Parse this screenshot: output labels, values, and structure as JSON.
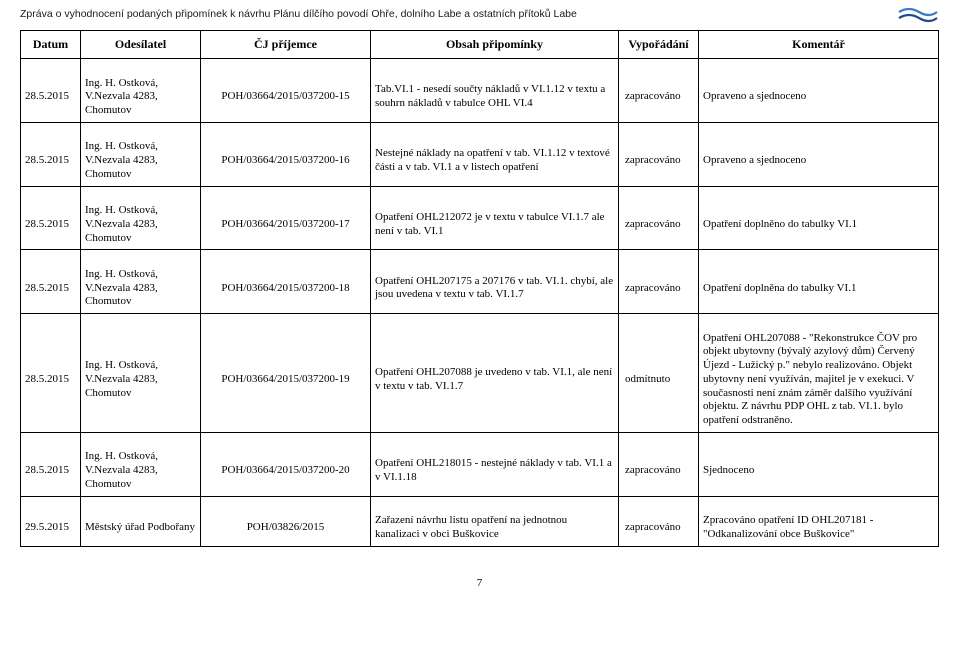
{
  "report_title": "Zpráva o vyhodnocení podaných připomínek k návrhu Plánu dílčího povodí Ohře, dolního Labe a ostatních přítoků Labe",
  "headers": {
    "date": "Datum",
    "sender": "Odesílatel",
    "ref": "ČJ příjemce",
    "obs": "Obsah připomínky",
    "vy": "Vypořádání",
    "kom": "Komentář"
  },
  "logo_colors": {
    "top": "#3b7bbf",
    "bottom": "#1f4e8c"
  },
  "rows": [
    {
      "date": "28.5.2015",
      "sender": "Ing. H. Ostková, V.Nezvala 4283, Chomutov",
      "ref": "POH/03664/2015/037200-15",
      "obs": "Tab.VI.1 - nesedí součty nákladů v VI.1.12 v textu a souhrn nákladů v tabulce OHL VI.4",
      "vy": "zapracováno",
      "kom": "Opraveno a sjednoceno"
    },
    {
      "date": "28.5.2015",
      "sender": "Ing. H. Ostková, V.Nezvala 4283, Chomutov",
      "ref": "POH/03664/2015/037200-16",
      "obs": "Nestejné náklady na opatření v tab. VI.1.12 v textové části a v tab. VI.1 a v listech opatření",
      "vy": "zapracováno",
      "kom": "Opraveno a sjednoceno"
    },
    {
      "date": "28.5.2015",
      "sender": "Ing. H. Ostková, V.Nezvala 4283, Chomutov",
      "ref": "POH/03664/2015/037200-17",
      "obs": "Opatření OHL212072 je v textu v tabulce VI.1.7 ale není v tab. VI.1",
      "vy": "zapracováno",
      "kom": "Opatření doplněno do tabulky VI.1"
    },
    {
      "date": "28.5.2015",
      "sender": "Ing. H. Ostková, V.Nezvala 4283, Chomutov",
      "ref": "POH/03664/2015/037200-18",
      "obs": "Opatření OHL207175 a 207176 v tab. VI.1. chybí, ale jsou uvedena v textu v tab. VI.1.7",
      "vy": "zapracováno",
      "kom": "Opatření doplněna do tabulky VI.1"
    },
    {
      "date": "28.5.2015",
      "sender": "Ing. H. Ostková, V.Nezvala 4283, Chomutov",
      "ref": "POH/03664/2015/037200-19",
      "obs": "Opatření OHL207088 je uvedeno v tab. VI.1, ale není v textu v tab. VI.1.7",
      "vy": "odmítnuto",
      "kom": "Opatření OHL207088 - \"Rekonstrukce ČOV pro objekt ubytovny (bývalý azylový dům) Červený Újezd - Lužický p.\" nebylo realizováno. Objekt ubytovny není využíván, majitel je v exekuci. V současnosti není znám záměr dalšího využívání objektu. Z návrhu PDP OHL z tab. VI.1. bylo opatření odstraněno."
    },
    {
      "date": "28.5.2015",
      "sender": "Ing. H. Ostková, V.Nezvala 4283, Chomutov",
      "ref": "POH/03664/2015/037200-20",
      "obs": "Opatření OHL218015 - nestejné náklady v tab. VI.1 a v VI.1.18",
      "vy": "zapracováno",
      "kom": "Sjednoceno"
    },
    {
      "date": "29.5.2015",
      "sender": "Městský úřad Podbořany",
      "ref": "POH/03826/2015",
      "obs": "Zařazení návrhu listu opatření na jednotnou kanalizaci v obci Buškovice",
      "vy": "zapracováno",
      "kom": "Zpracováno opatření ID OHL207181 - \"Odkanalizování obce Buškovice\""
    }
  ],
  "page_number": "7"
}
